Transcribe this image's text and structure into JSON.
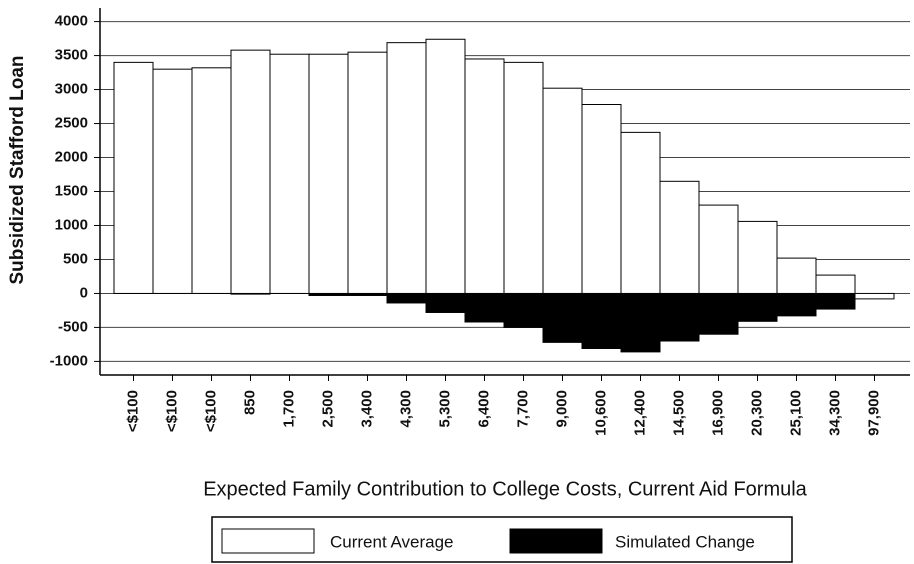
{
  "chart_data": {
    "type": "bar",
    "x_label": "Expected Family Contribution to College Costs, Current Aid Formula",
    "y_label": "Subsidized Stafford Loan",
    "categories": [
      "<$100",
      "<$100",
      "<$100",
      "850",
      "1,700",
      "2,500",
      "3,400",
      "4,300",
      "5,300",
      "6,400",
      "7,700",
      "9,000",
      "10,600",
      "12,400",
      "14,500",
      "16,900",
      "20,300",
      "25,100",
      "34,300",
      "97,900"
    ],
    "series": [
      {
        "name": "Current Average",
        "color": "#ffffff",
        "values": [
          3400,
          3300,
          3320,
          3580,
          3520,
          3520,
          3550,
          3690,
          3740,
          3450,
          3400,
          3020,
          2780,
          2370,
          1650,
          1300,
          1060,
          520,
          270,
          -80
        ]
      },
      {
        "name": "Simulated Change",
        "color": "#000000",
        "values": [
          0,
          0,
          0,
          -10,
          0,
          -30,
          -30,
          -140,
          -280,
          -420,
          -500,
          -720,
          -810,
          -860,
          -700,
          -600,
          -410,
          -330,
          -230,
          0
        ]
      }
    ],
    "ylim": [
      -1200,
      4200
    ],
    "yticks": [
      -1000,
      -500,
      0,
      500,
      1000,
      1500,
      2000,
      2500,
      3000,
      3500,
      4000
    ],
    "grid": true,
    "legend": "bottom"
  }
}
